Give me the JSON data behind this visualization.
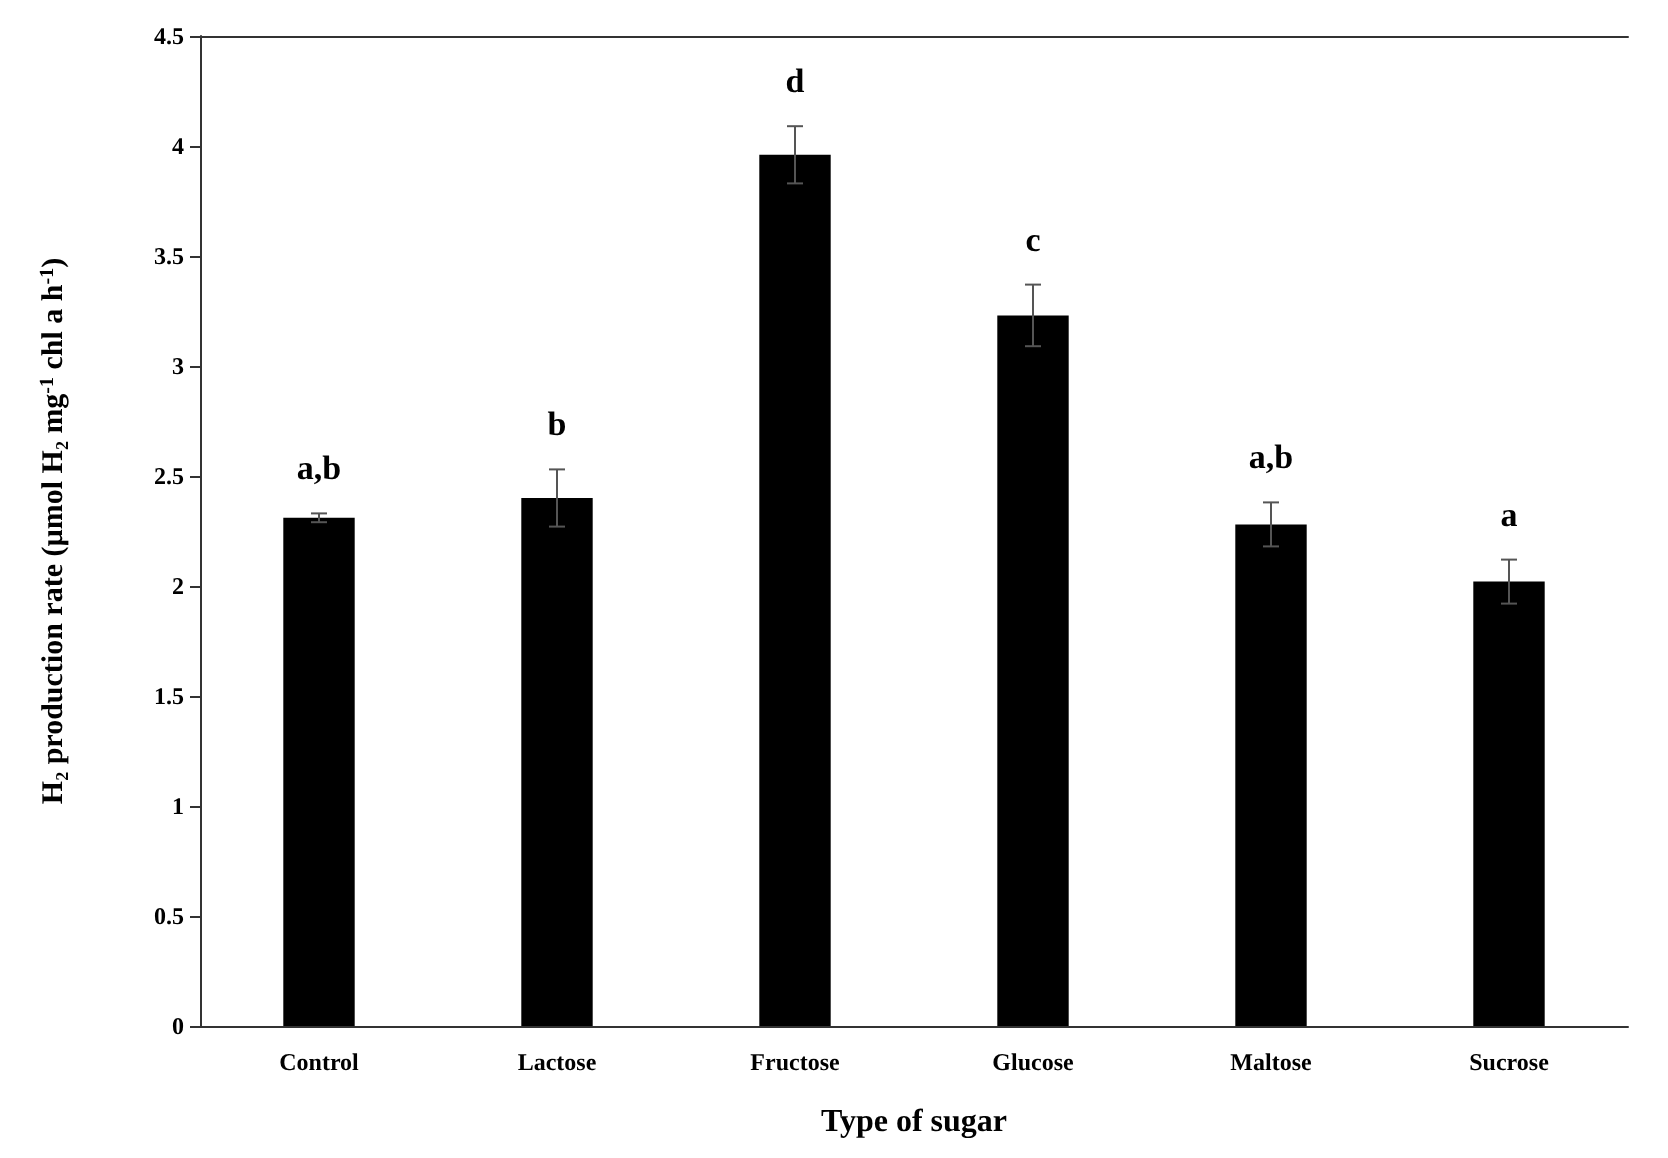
{
  "chart_data": {
    "type": "bar",
    "xlabel": "Type of sugar",
    "ylabel": "H₂ production rate (µmol H₂ mg$^{-1}$ chl a h$^{-1}$)",
    "categories": [
      "Control",
      "Lactose",
      "Fructose",
      "Glucose",
      "Maltose",
      "Sucrose"
    ],
    "values": [
      2.31,
      2.4,
      3.96,
      3.23,
      2.28,
      2.02
    ],
    "errors": [
      0.02,
      0.13,
      0.13,
      0.14,
      0.1,
      0.1
    ],
    "color": "#000000",
    "ylim": [
      0,
      4.5
    ],
    "yticks": [
      0,
      0.5,
      1,
      1.5,
      2,
      2.5,
      3,
      3.5,
      4,
      4.5
    ],
    "grid": false,
    "annotations": [
      "a,b",
      "b",
      "d",
      "c",
      "a,b",
      "a"
    ]
  }
}
